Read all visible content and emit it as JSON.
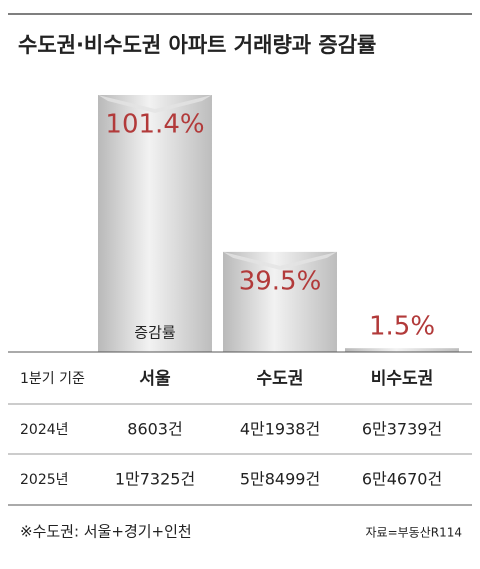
{
  "chart_data": {
    "type": "bar",
    "title": "수도권·비수도권 아파트 거래량과 증감률",
    "annotation": "증감률",
    "categories": [
      "서울",
      "수도권",
      "비수도권"
    ],
    "values": [
      101.4,
      39.5,
      1.5
    ],
    "value_labels": [
      "101.4%",
      "39.5%",
      "1.5%"
    ],
    "color": "#c9c9c9",
    "label_color": "#b23a3a"
  },
  "table": {
    "header": [
      "1분기 기준",
      "서울",
      "수도권",
      "비수도권"
    ],
    "rows": [
      [
        "2024년",
        "8603건",
        "4만1938건",
        "6만3739건"
      ],
      [
        "2025년",
        "1만7325건",
        "5만8499건",
        "6만4670건"
      ]
    ]
  },
  "footnote": "※수도권: 서울+경기+인천",
  "source": "자료=부동산R114"
}
